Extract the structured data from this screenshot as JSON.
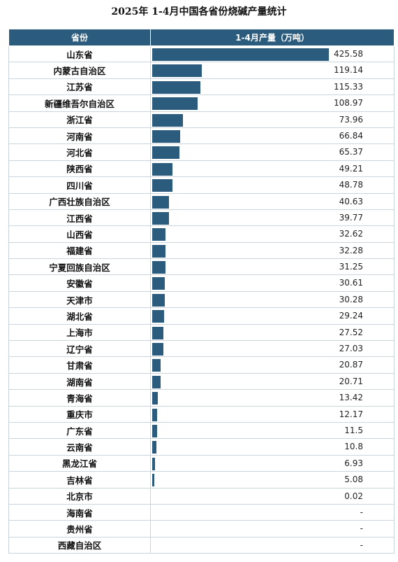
{
  "title": "2025年 1-4月中国各省份烧碱产量统计",
  "header": {
    "province": "省份",
    "value": "1-4月产量（万吨）"
  },
  "colors": {
    "bar": "#2b5b7d",
    "header_bg": "#2b5b7d"
  },
  "chart_data": {
    "type": "bar",
    "orientation": "horizontal",
    "title": "2025年 1-4月中国各省份烧碱产量统计",
    "xlabel": "1-4月产量（万吨）",
    "ylabel": "省份",
    "xlim": [
      0,
      425.58
    ],
    "categories": [
      "山东省",
      "内蒙古自治区",
      "江苏省",
      "新疆维吾尔自治区",
      "浙江省",
      "河南省",
      "河北省",
      "陕西省",
      "四川省",
      "广西壮族自治区",
      "江西省",
      "山西省",
      "福建省",
      "宁夏回族自治区",
      "安徽省",
      "天津市",
      "湖北省",
      "上海市",
      "辽宁省",
      "甘肃省",
      "湖南省",
      "青海省",
      "重庆市",
      "广东省",
      "云南省",
      "黑龙江省",
      "吉林省",
      "北京市",
      "海南省",
      "贵州省",
      "西藏自治区"
    ],
    "values": [
      425.58,
      119.14,
      115.33,
      108.97,
      73.96,
      66.84,
      65.37,
      49.21,
      48.78,
      40.63,
      39.77,
      32.62,
      32.28,
      31.25,
      30.61,
      30.28,
      29.24,
      27.52,
      27.03,
      20.87,
      20.71,
      13.42,
      12.17,
      11.5,
      10.8,
      6.93,
      5.08,
      0.02,
      null,
      null,
      null
    ],
    "value_labels": [
      "425.58",
      "119.14",
      "115.33",
      "108.97",
      "73.96",
      "66.84",
      "65.37",
      "49.21",
      "48.78",
      "40.63",
      "39.77",
      "32.62",
      "32.28",
      "31.25",
      "30.61",
      "30.28",
      "29.24",
      "27.52",
      "27.03",
      "20.87",
      "20.71",
      "13.42",
      "12.17",
      "11.5",
      "10.8",
      "6.93",
      "5.08",
      "0.02",
      "-",
      "-",
      "-"
    ]
  }
}
